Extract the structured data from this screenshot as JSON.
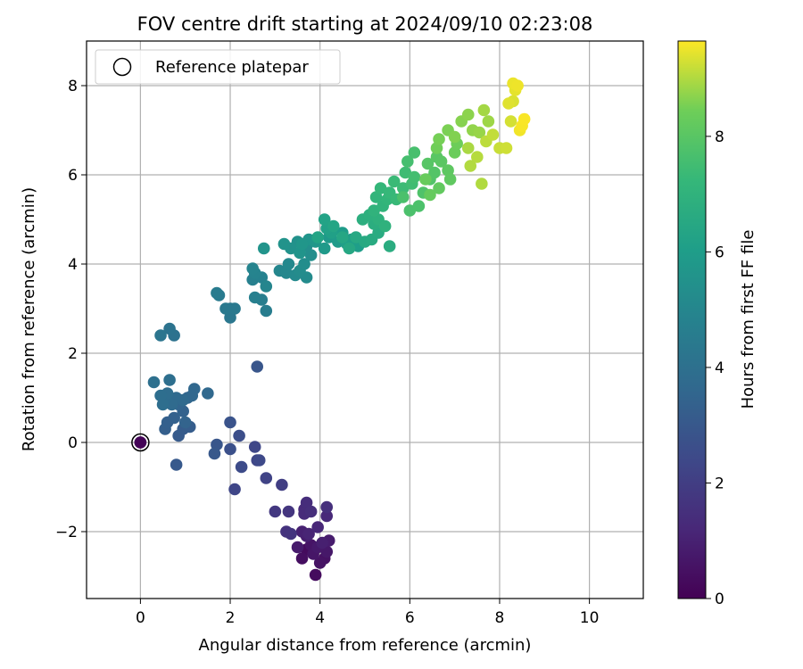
{
  "chart_data": {
    "type": "scatter",
    "title": "FOV centre drift starting at 2024/09/10 02:23:08",
    "xlabel": "Angular distance from reference (arcmin)",
    "ylabel": "Rotation from reference (arcmin)",
    "xlim": [
      -1.2,
      11.2
    ],
    "ylim": [
      -3.5,
      9.0
    ],
    "xticks": [
      0,
      2,
      4,
      6,
      8,
      10
    ],
    "yticks": [
      -2,
      0,
      2,
      4,
      6,
      8
    ],
    "grid": true,
    "legend": {
      "placement": "top-left",
      "entries": [
        "Reference platepar"
      ]
    },
    "reference_point": {
      "x": 0,
      "y": 0
    },
    "colorbar": {
      "label": "Hours from first FF file",
      "range": [
        0,
        9.65
      ],
      "ticks": [
        0,
        2,
        4,
        6,
        8
      ],
      "colormap": "viridis"
    },
    "series": [
      {
        "points": [
          [
            0.0,
            0.0,
            0.05
          ],
          [
            0.0,
            0.0,
            0.1
          ],
          [
            3.7,
            -2.4,
            0.3
          ],
          [
            3.6,
            -2.6,
            0.4
          ],
          [
            3.9,
            -2.97,
            0.35
          ],
          [
            4.1,
            -2.6,
            0.5
          ],
          [
            3.8,
            -2.3,
            0.6
          ],
          [
            4.15,
            -2.45,
            0.7
          ],
          [
            4.0,
            -2.7,
            0.55
          ],
          [
            3.5,
            -2.35,
            0.8
          ],
          [
            3.7,
            -2.1,
            0.9
          ],
          [
            4.2,
            -2.2,
            0.85
          ],
          [
            3.85,
            -2.5,
            0.65
          ],
          [
            3.95,
            -2.35,
            0.75
          ],
          [
            4.05,
            -2.25,
            0.95
          ],
          [
            3.6,
            -2.0,
            1.0
          ],
          [
            3.75,
            -2.05,
            1.1
          ],
          [
            3.95,
            -1.9,
            1.2
          ],
          [
            4.15,
            -1.65,
            1.25
          ],
          [
            3.65,
            -1.5,
            1.3
          ],
          [
            3.7,
            -1.35,
            1.4
          ],
          [
            4.15,
            -1.45,
            1.5
          ],
          [
            3.65,
            -1.6,
            1.35
          ],
          [
            3.8,
            -1.55,
            1.45
          ],
          [
            3.25,
            -2.0,
            1.6
          ],
          [
            3.35,
            -2.05,
            1.65
          ],
          [
            3.3,
            -1.55,
            1.7
          ],
          [
            3.0,
            -1.55,
            1.8
          ],
          [
            3.15,
            -0.95,
            2.0
          ],
          [
            2.8,
            -0.8,
            2.2
          ],
          [
            2.6,
            -0.4,
            2.3
          ],
          [
            2.55,
            -0.1,
            2.35
          ],
          [
            2.65,
            -0.4,
            2.4
          ],
          [
            2.25,
            -0.55,
            2.5
          ],
          [
            2.1,
            -1.05,
            2.3
          ],
          [
            2.2,
            0.15,
            2.6
          ],
          [
            2.0,
            -0.15,
            2.7
          ],
          [
            2.0,
            0.45,
            2.8
          ],
          [
            1.7,
            -0.05,
            2.9
          ],
          [
            1.65,
            -0.25,
            3.0
          ],
          [
            2.6,
            1.7,
            2.9
          ],
          [
            0.8,
            -0.5,
            3.05
          ],
          [
            0.85,
            0.15,
            3.1
          ],
          [
            0.95,
            0.3,
            3.15
          ],
          [
            1.1,
            0.35,
            3.2
          ],
          [
            0.55,
            0.3,
            3.25
          ],
          [
            0.6,
            0.45,
            3.3
          ],
          [
            0.75,
            0.55,
            3.35
          ],
          [
            0.95,
            0.7,
            3.4
          ],
          [
            1.0,
            0.45,
            3.45
          ],
          [
            0.85,
            0.85,
            3.5
          ],
          [
            1.05,
            1.0,
            3.55
          ],
          [
            1.2,
            1.2,
            3.6
          ],
          [
            1.15,
            1.05,
            3.62
          ],
          [
            1.5,
            1.1,
            3.65
          ],
          [
            0.8,
            1.0,
            3.7
          ],
          [
            0.95,
            0.95,
            3.72
          ],
          [
            0.7,
            0.85,
            3.75
          ],
          [
            0.55,
            0.95,
            3.8
          ],
          [
            0.6,
            1.1,
            3.85
          ],
          [
            0.45,
            1.05,
            3.9
          ],
          [
            0.5,
            0.85,
            3.92
          ],
          [
            0.65,
            1.4,
            3.95
          ],
          [
            0.3,
            1.35,
            4.0
          ],
          [
            0.75,
            2.4,
            4.1
          ],
          [
            0.65,
            2.55,
            4.15
          ],
          [
            0.45,
            2.4,
            4.2
          ],
          [
            2.0,
            2.8,
            4.3
          ],
          [
            2.0,
            3.0,
            4.35
          ],
          [
            1.9,
            3.0,
            4.4
          ],
          [
            2.1,
            3.0,
            4.42
          ],
          [
            1.75,
            3.3,
            4.45
          ],
          [
            1.7,
            3.35,
            4.5
          ],
          [
            2.8,
            2.95,
            4.6
          ],
          [
            2.7,
            3.2,
            4.65
          ],
          [
            2.55,
            3.25,
            4.7
          ],
          [
            2.5,
            3.65,
            4.75
          ],
          [
            2.7,
            3.7,
            4.8
          ],
          [
            2.55,
            3.8,
            4.85
          ],
          [
            2.5,
            3.9,
            4.9
          ],
          [
            2.8,
            3.5,
            4.95
          ],
          [
            3.1,
            3.85,
            5.0
          ],
          [
            3.25,
            3.8,
            5.05
          ],
          [
            3.3,
            4.0,
            5.1
          ],
          [
            3.45,
            3.75,
            5.15
          ],
          [
            3.7,
            3.7,
            5.2
          ],
          [
            3.55,
            3.85,
            5.25
          ],
          [
            3.65,
            4.0,
            5.3
          ],
          [
            3.8,
            4.2,
            5.35
          ],
          [
            3.7,
            4.4,
            5.4
          ],
          [
            3.5,
            4.5,
            5.45
          ],
          [
            3.35,
            4.35,
            5.5
          ],
          [
            3.2,
            4.45,
            5.55
          ],
          [
            2.75,
            4.35,
            5.6
          ],
          [
            3.55,
            4.25,
            5.62
          ],
          [
            3.75,
            4.55,
            5.65
          ],
          [
            3.6,
            4.45,
            5.7
          ],
          [
            3.9,
            4.5,
            5.75
          ],
          [
            4.2,
            4.6,
            5.8
          ],
          [
            4.1,
            4.35,
            5.85
          ],
          [
            4.4,
            4.5,
            5.9
          ],
          [
            4.5,
            4.7,
            5.95
          ],
          [
            4.7,
            4.55,
            6.0
          ],
          [
            4.85,
            4.4,
            6.05
          ],
          [
            4.6,
            4.45,
            6.1
          ],
          [
            4.25,
            4.7,
            6.15
          ],
          [
            4.15,
            4.8,
            6.2
          ],
          [
            4.1,
            5.0,
            6.25
          ],
          [
            3.95,
            4.6,
            6.3
          ],
          [
            4.3,
            4.85,
            6.35
          ],
          [
            4.5,
            4.6,
            6.4
          ],
          [
            4.65,
            4.35,
            6.45
          ],
          [
            4.8,
            4.6,
            6.5
          ],
          [
            5.0,
            4.5,
            6.55
          ],
          [
            5.15,
            4.55,
            6.6
          ],
          [
            5.3,
            4.7,
            6.65
          ],
          [
            5.55,
            4.4,
            6.7
          ],
          [
            5.2,
            4.9,
            6.75
          ],
          [
            4.95,
            5.0,
            6.8
          ],
          [
            5.1,
            5.1,
            6.85
          ],
          [
            5.3,
            5.0,
            6.9
          ],
          [
            5.45,
            4.85,
            6.95
          ],
          [
            5.2,
            5.2,
            7.0
          ],
          [
            5.4,
            5.3,
            7.05
          ],
          [
            5.25,
            5.5,
            7.1
          ],
          [
            5.5,
            5.45,
            7.15
          ],
          [
            5.35,
            5.7,
            7.2
          ],
          [
            5.55,
            5.6,
            7.25
          ],
          [
            5.7,
            5.45,
            7.3
          ],
          [
            5.65,
            5.85,
            7.35
          ],
          [
            5.85,
            5.7,
            7.4
          ],
          [
            5.9,
            6.05,
            7.45
          ],
          [
            6.05,
            5.8,
            7.5
          ],
          [
            6.1,
            5.95,
            7.55
          ],
          [
            5.95,
            6.3,
            7.6
          ],
          [
            6.1,
            6.5,
            7.65
          ],
          [
            5.85,
            5.5,
            7.7
          ],
          [
            6.0,
            5.2,
            7.72
          ],
          [
            6.2,
            5.3,
            7.75
          ],
          [
            6.3,
            5.6,
            7.8
          ],
          [
            6.45,
            5.9,
            7.85
          ],
          [
            6.55,
            6.05,
            7.9
          ],
          [
            6.4,
            6.25,
            7.95
          ],
          [
            6.6,
            6.4,
            8.0
          ],
          [
            6.7,
            6.3,
            8.05
          ],
          [
            6.85,
            6.1,
            8.1
          ],
          [
            6.9,
            5.9,
            8.15
          ],
          [
            6.65,
            5.7,
            8.2
          ],
          [
            6.45,
            5.55,
            8.25
          ],
          [
            6.35,
            5.9,
            8.3
          ],
          [
            7.0,
            6.5,
            8.35
          ],
          [
            7.05,
            6.7,
            8.4
          ],
          [
            6.6,
            6.6,
            8.45
          ],
          [
            6.65,
            6.8,
            8.5
          ],
          [
            6.85,
            7.0,
            8.55
          ],
          [
            7.0,
            6.85,
            8.6
          ],
          [
            7.15,
            7.2,
            8.65
          ],
          [
            7.3,
            7.35,
            8.7
          ],
          [
            7.4,
            7.0,
            8.75
          ],
          [
            7.55,
            6.95,
            8.8
          ],
          [
            7.75,
            7.2,
            8.85
          ],
          [
            7.65,
            7.45,
            8.9
          ],
          [
            7.3,
            6.6,
            8.95
          ],
          [
            7.6,
            5.8,
            9.0
          ],
          [
            7.35,
            6.2,
            9.02
          ],
          [
            7.5,
            6.4,
            9.05
          ],
          [
            7.7,
            6.75,
            9.1
          ],
          [
            7.85,
            6.9,
            9.15
          ],
          [
            8.0,
            6.6,
            9.2
          ],
          [
            8.15,
            6.6,
            9.25
          ],
          [
            8.25,
            7.2,
            9.3
          ],
          [
            8.3,
            7.65,
            9.35
          ],
          [
            8.2,
            7.6,
            9.4
          ],
          [
            8.35,
            7.9,
            9.45
          ],
          [
            8.3,
            8.05,
            9.5
          ],
          [
            8.4,
            8.0,
            9.52
          ],
          [
            8.45,
            7.0,
            9.55
          ],
          [
            8.5,
            7.1,
            9.6
          ],
          [
            8.55,
            7.25,
            9.62
          ]
        ]
      }
    ]
  }
}
